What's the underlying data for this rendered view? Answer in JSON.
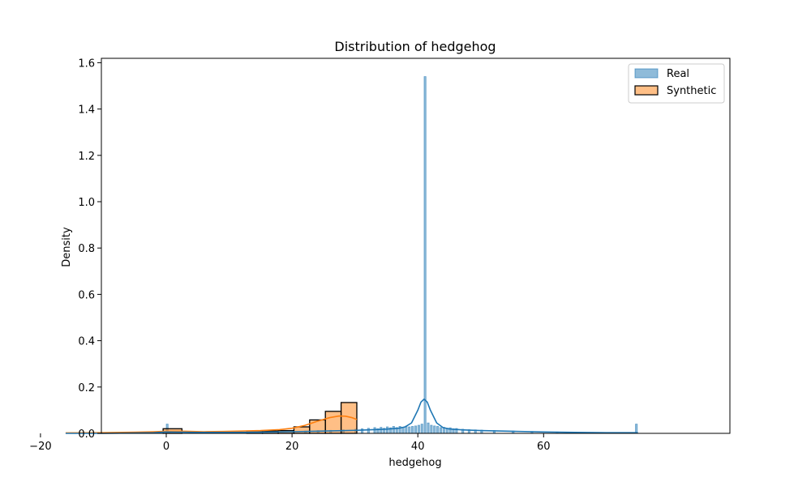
{
  "chart_data": {
    "type": "histogram",
    "title": "Distribution of hedgehog",
    "xlabel": "hedgehog",
    "ylabel": "Density",
    "xlim": [
      -20,
      80
    ],
    "ylim": [
      0,
      1.6
    ],
    "xticks": [
      -20,
      0,
      20,
      40,
      60
    ],
    "yticks": [
      0.0,
      0.2,
      0.4,
      0.6,
      0.8,
      1.0,
      1.2,
      1.4,
      1.6
    ],
    "ytick_labels": [
      "0.0",
      "0.2",
      "0.4",
      "0.6",
      "0.8",
      "1.0",
      "1.2",
      "1.4",
      "1.6"
    ],
    "legend_position": "top-right",
    "colors": {
      "real_fill": "#1f77b4",
      "real_line": "#1f77b4",
      "synthetic_fill": "#ff7f0e",
      "synthetic_line": "#ff7f0e",
      "synthetic_edge": "#000000"
    },
    "series": [
      {
        "name": "Real",
        "bin_width": 0.3,
        "bins": [
          [
            0.0,
            0.04
          ],
          [
            0.3,
            0.005
          ],
          [
            5.0,
            0.003
          ],
          [
            10.0,
            0.004
          ],
          [
            15.0,
            0.006
          ],
          [
            20.0,
            0.008
          ],
          [
            22.0,
            0.01
          ],
          [
            24.0,
            0.012
          ],
          [
            26.0,
            0.013
          ],
          [
            28.0,
            0.015
          ],
          [
            30.0,
            0.018
          ],
          [
            31.0,
            0.02
          ],
          [
            32.0,
            0.022
          ],
          [
            33.0,
            0.025
          ],
          [
            33.5,
            0.02
          ],
          [
            34.0,
            0.026
          ],
          [
            34.5,
            0.022
          ],
          [
            35.0,
            0.028
          ],
          [
            35.5,
            0.024
          ],
          [
            36.0,
            0.03
          ],
          [
            36.5,
            0.025
          ],
          [
            37.0,
            0.03
          ],
          [
            37.5,
            0.026
          ],
          [
            38.0,
            0.031
          ],
          [
            38.5,
            0.028
          ],
          [
            39.0,
            0.03
          ],
          [
            39.5,
            0.032
          ],
          [
            40.0,
            0.035
          ],
          [
            40.5,
            0.04
          ],
          [
            41.0,
            1.54
          ],
          [
            41.5,
            0.045
          ],
          [
            42.0,
            0.035
          ],
          [
            42.5,
            0.032
          ],
          [
            43.0,
            0.03
          ],
          [
            43.5,
            0.025
          ],
          [
            44.0,
            0.026
          ],
          [
            44.5,
            0.022
          ],
          [
            45.0,
            0.024
          ],
          [
            45.5,
            0.02
          ],
          [
            46.0,
            0.021
          ],
          [
            47.0,
            0.018
          ],
          [
            48.0,
            0.016
          ],
          [
            49.0,
            0.015
          ],
          [
            50.0,
            0.014
          ],
          [
            52.0,
            0.012
          ],
          [
            55.0,
            0.01
          ],
          [
            58.0,
            0.008
          ],
          [
            62.0,
            0.006
          ],
          [
            66.0,
            0.004
          ],
          [
            70.0,
            0.003
          ],
          [
            74.6,
            0.04
          ]
        ],
        "kde": [
          [
            -16,
            0.0
          ],
          [
            -10,
            0.0
          ],
          [
            -2,
            0.003
          ],
          [
            0,
            0.006
          ],
          [
            5,
            0.004
          ],
          [
            10,
            0.004
          ],
          [
            15,
            0.005
          ],
          [
            20,
            0.007
          ],
          [
            25,
            0.01
          ],
          [
            30,
            0.013
          ],
          [
            33,
            0.016
          ],
          [
            35,
            0.018
          ],
          [
            37,
            0.022
          ],
          [
            38,
            0.028
          ],
          [
            39,
            0.045
          ],
          [
            40,
            0.1
          ],
          [
            40.5,
            0.135
          ],
          [
            41,
            0.148
          ],
          [
            41.5,
            0.135
          ],
          [
            42,
            0.1
          ],
          [
            43,
            0.045
          ],
          [
            44,
            0.025
          ],
          [
            45,
            0.019
          ],
          [
            47,
            0.015
          ],
          [
            50,
            0.012
          ],
          [
            55,
            0.009
          ],
          [
            60,
            0.006
          ],
          [
            65,
            0.004
          ],
          [
            70,
            0.003
          ],
          [
            75,
            0.003
          ]
        ]
      },
      {
        "name": "Synthetic",
        "bins": [
          [
            -0.5,
            2.5,
            0.02
          ],
          [
            12.8,
            15.3,
            0.01
          ],
          [
            15.3,
            17.8,
            0.01
          ],
          [
            17.8,
            20.3,
            0.012
          ],
          [
            20.3,
            22.8,
            0.028
          ],
          [
            22.8,
            25.3,
            0.058
          ],
          [
            25.3,
            27.8,
            0.095
          ],
          [
            27.8,
            30.3,
            0.133
          ]
        ],
        "kde": [
          [
            -16,
            0.002
          ],
          [
            -10,
            0.003
          ],
          [
            -5,
            0.005
          ],
          [
            -2,
            0.007
          ],
          [
            0,
            0.009
          ],
          [
            3,
            0.009
          ],
          [
            6,
            0.007
          ],
          [
            9,
            0.008
          ],
          [
            12,
            0.01
          ],
          [
            15,
            0.012
          ],
          [
            18,
            0.016
          ],
          [
            20,
            0.022
          ],
          [
            22,
            0.034
          ],
          [
            24,
            0.052
          ],
          [
            26,
            0.068
          ],
          [
            27.5,
            0.075
          ],
          [
            28.5,
            0.074
          ],
          [
            29.5,
            0.068
          ],
          [
            30.3,
            0.06
          ]
        ]
      }
    ]
  }
}
